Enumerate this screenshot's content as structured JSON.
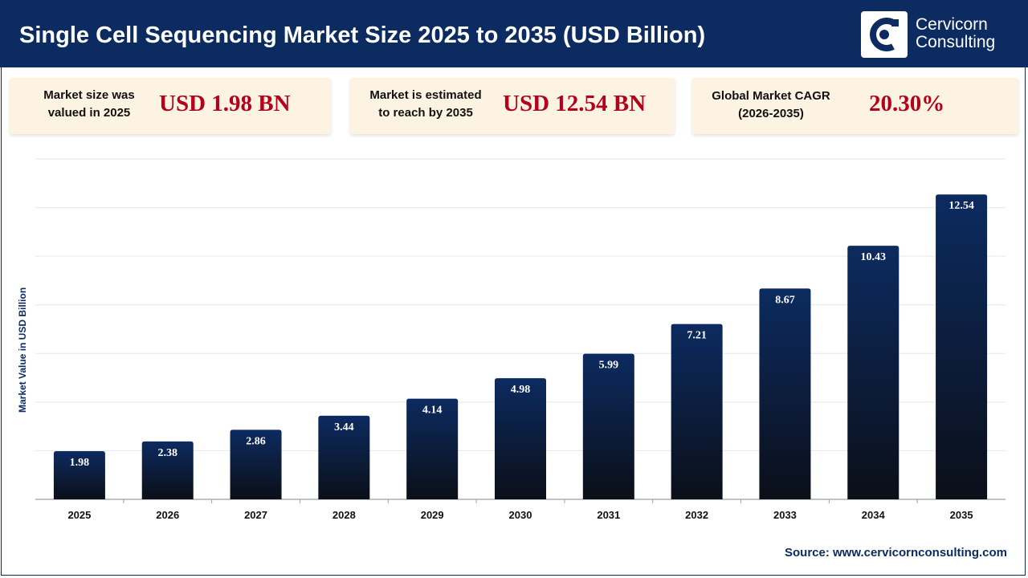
{
  "header": {
    "title": "Single Cell Sequencing Market Size 2025 to 2035 (USD Billion)",
    "logo_line1": "Cervicorn",
    "logo_line2": "Consulting"
  },
  "cards": [
    {
      "label": "Market size was\nvalued in 2025",
      "value": "USD 1.98 BN"
    },
    {
      "label": "Market is estimated\nto reach by 2035",
      "value": "USD 12.54 BN"
    },
    {
      "label": "Global Market CAGR\n(2026-2035)",
      "value": "20.30%"
    }
  ],
  "source": "Source: www.cervicornconsulting.com",
  "colors": {
    "header_bg": "#0c2b60",
    "bar_top": "#0c2b60",
    "bar_bottom": "#0b0f18",
    "card_bg": "#fdf3e2",
    "value_red": "#b3001b"
  },
  "chart_data": {
    "type": "bar",
    "title": "Single Cell Sequencing Market Size 2025 to 2035 (USD Billion)",
    "xlabel": "",
    "ylabel": "Market Value in USD Billion",
    "categories": [
      "2025",
      "2026",
      "2027",
      "2028",
      "2029",
      "2030",
      "2031",
      "2032",
      "2033",
      "2034",
      "2035"
    ],
    "values": [
      1.98,
      2.38,
      2.86,
      3.44,
      4.14,
      4.98,
      5.99,
      7.21,
      8.67,
      10.43,
      12.54
    ],
    "value_labels": [
      "1.98",
      "2.38",
      "2.86",
      "3.44",
      "4.14",
      "4.98",
      "5.99",
      "7.21",
      "8.67",
      "10.43",
      "12.54"
    ],
    "ylim": [
      0,
      14
    ],
    "grid": true,
    "legend": "none"
  }
}
